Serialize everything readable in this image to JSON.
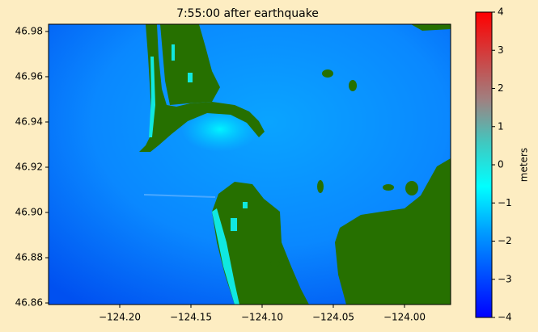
{
  "chart_data": {
    "type": "map",
    "title": "7:55:00 after earthquake",
    "xlim": [
      -124.25,
      -123.9676
    ],
    "ylim": [
      46.8593,
      46.9832
    ],
    "xticks": [
      {
        "value": -124.2,
        "label": "−124.20"
      },
      {
        "value": -124.15,
        "label": "−124.15"
      },
      {
        "value": -124.1,
        "label": "−124.10"
      },
      {
        "value": -124.05,
        "label": "−124.05"
      },
      {
        "value": -124.0,
        "label": "−124.00"
      }
    ],
    "yticks": [
      46.86,
      46.88,
      {
        "value": 46.9,
        "label": "46.90"
      },
      46.92,
      46.94,
      46.96,
      46.98
    ],
    "colorbar": {
      "label": "meters",
      "lim": [
        -4,
        4
      ],
      "ticks": [
        {
          "value": -4,
          "label": "−4"
        },
        {
          "value": -3,
          "label": "−3"
        },
        {
          "value": -2,
          "label": "−2"
        },
        {
          "value": -1,
          "label": "−1"
        },
        0,
        1,
        2,
        3,
        4
      ],
      "colors": [
        "#0000ff",
        "#0050ff",
        "#00a0ff",
        "#00ffff",
        "#40c8c0",
        "#a08080",
        "#d04040",
        "#ff0000"
      ]
    }
  }
}
